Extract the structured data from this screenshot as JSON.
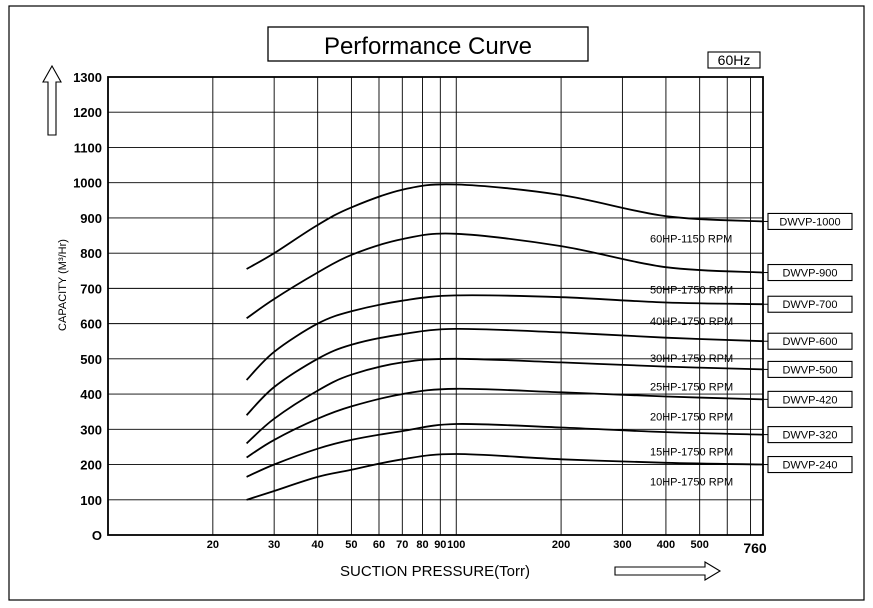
{
  "chart_data": {
    "type": "line",
    "title": "Performance Curve",
    "badge": "60Hz",
    "xlabel": "SUCTION PRESSURE(Torr)",
    "ylabel": "CAPACITY (M³/Hr)",
    "xscale": "log",
    "xlim": [
      10,
      760
    ],
    "ylim": [
      0,
      1300
    ],
    "grid": true,
    "y_ticks": [
      0,
      100,
      200,
      300,
      400,
      500,
      600,
      700,
      800,
      900,
      1000,
      1100,
      1200,
      1300
    ],
    "y_tick_labels": [
      "O",
      "100",
      "200",
      "300",
      "400",
      "500",
      "600",
      "700",
      "800",
      "900",
      "1000",
      "1100",
      "1200",
      "1300"
    ],
    "x_grid": [
      20,
      30,
      40,
      50,
      60,
      70,
      80,
      90,
      100,
      200,
      300,
      400,
      500,
      600,
      700
    ],
    "x_ticks": [
      {
        "v": 20,
        "label": "20"
      },
      {
        "v": 30,
        "label": "30"
      },
      {
        "v": 40,
        "label": "40"
      },
      {
        "v": 50,
        "label": "50"
      },
      {
        "v": 60,
        "label": "60"
      },
      {
        "v": 70,
        "label": "70"
      },
      {
        "v": 80,
        "label": "80"
      },
      {
        "v": 90,
        "label": "90"
      },
      {
        "v": 100,
        "label": "100"
      },
      {
        "v": 200,
        "label": "200"
      },
      {
        "v": 300,
        "label": "300"
      },
      {
        "v": 400,
        "label": "400"
      },
      {
        "v": 500,
        "label": "500"
      },
      {
        "v": 760,
        "label": "760"
      }
    ],
    "series": [
      {
        "name": "DWVP-1000",
        "label": "60HP-1150 RPM",
        "x": [
          25,
          30,
          40,
          50,
          70,
          100,
          200,
          400,
          760
        ],
        "y": [
          755,
          800,
          880,
          930,
          980,
          995,
          965,
          905,
          890
        ]
      },
      {
        "name": "DWVP-900",
        "label": "50HP-1750 RPM",
        "x": [
          25,
          30,
          40,
          50,
          70,
          100,
          200,
          400,
          760
        ],
        "y": [
          615,
          670,
          745,
          795,
          840,
          855,
          820,
          760,
          745
        ]
      },
      {
        "name": "DWVP-700",
        "label": "40HP-1750 RPM",
        "x": [
          25,
          30,
          40,
          50,
          70,
          100,
          200,
          400,
          760
        ],
        "y": [
          440,
          520,
          600,
          635,
          665,
          680,
          675,
          660,
          655
        ]
      },
      {
        "name": "DWVP-600",
        "label": "30HP-1750 RPM",
        "x": [
          25,
          30,
          40,
          50,
          70,
          100,
          200,
          400,
          760
        ],
        "y": [
          340,
          420,
          500,
          540,
          570,
          585,
          575,
          560,
          550
        ]
      },
      {
        "name": "DWVP-500",
        "label": "25HP-1750 RPM",
        "x": [
          25,
          30,
          40,
          50,
          70,
          100,
          200,
          400,
          760
        ],
        "y": [
          260,
          330,
          410,
          455,
          490,
          500,
          490,
          478,
          470
        ]
      },
      {
        "name": "DWVP-420",
        "label": "20HP-1750 RPM",
        "x": [
          25,
          30,
          40,
          50,
          70,
          100,
          200,
          400,
          760
        ],
        "y": [
          220,
          270,
          330,
          365,
          400,
          415,
          405,
          393,
          385
        ]
      },
      {
        "name": "DWVP-320",
        "label": "15HP-1750 RPM",
        "x": [
          25,
          30,
          40,
          50,
          70,
          100,
          200,
          400,
          760
        ],
        "y": [
          165,
          200,
          245,
          270,
          295,
          315,
          305,
          292,
          285
        ]
      },
      {
        "name": "DWVP-240",
        "label": "10HP-1750 RPM",
        "x": [
          25,
          30,
          40,
          50,
          70,
          100,
          200,
          400,
          760
        ],
        "y": [
          100,
          125,
          165,
          185,
          215,
          230,
          215,
          205,
          200
        ]
      }
    ]
  }
}
